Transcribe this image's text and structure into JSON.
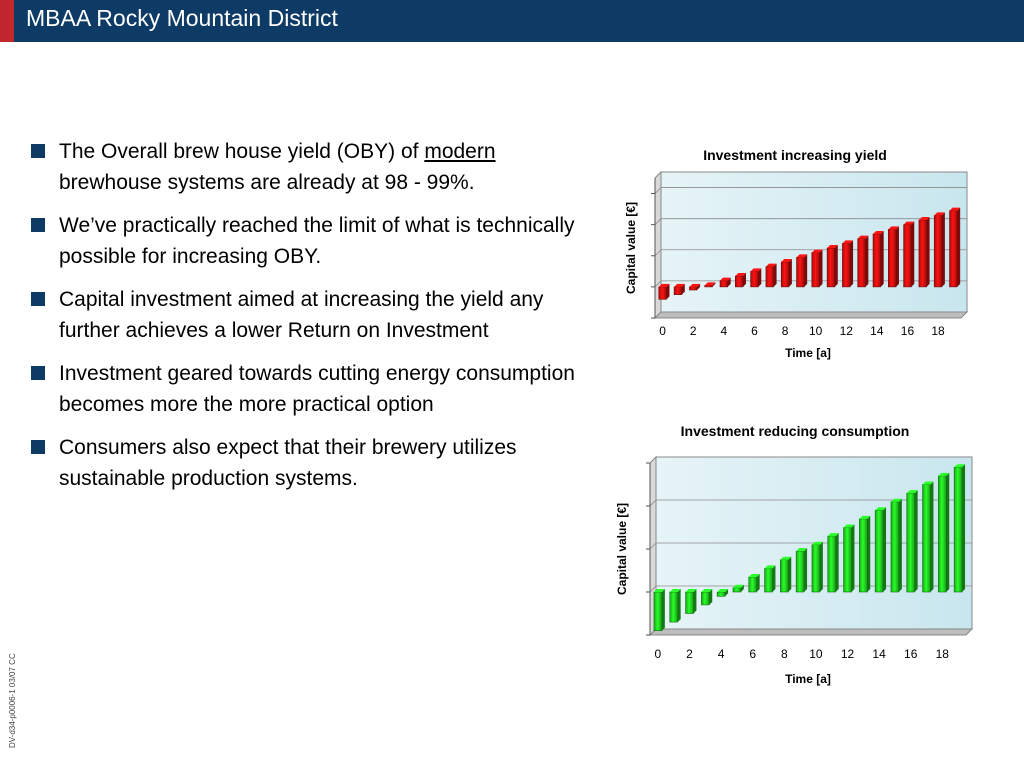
{
  "header": {
    "title": "MBAA Rocky Mountain District",
    "bg": "#0e3a66",
    "accent": "#c0282d"
  },
  "bullets": [
    {
      "pre": "The Overall brew house yield (OBY) of ",
      "underlined": "modern",
      "post": " brewhouse systems are already at 98 - 99%."
    },
    {
      "text": "We’ve practically reached the limit of what is technically possible for increasing OBY."
    },
    {
      "text": "Capital investment aimed at increasing the yield any further achieves a lower Return on Investment"
    },
    {
      "text": "Investment geared towards cutting energy consumption becomes more the more practical option"
    },
    {
      "text": "Consumers also expect that their brewery utilizes sustainable production systems."
    }
  ],
  "footer_code": "DV-d34-p0006-1 03/07 CC",
  "chart_data": [
    {
      "type": "bar",
      "title": "Investment increasing yield",
      "xlabel": "Time [a]",
      "ylabel": "Capital value [€]",
      "x": [
        0,
        1,
        2,
        3,
        4,
        5,
        6,
        7,
        8,
        9,
        10,
        11,
        12,
        13,
        14,
        15,
        16,
        17,
        18,
        19
      ],
      "xticks": [
        "0",
        "2",
        "4",
        "6",
        "8",
        "10",
        "12",
        "14",
        "16",
        "18"
      ],
      "values": [
        -0.4,
        -0.25,
        -0.1,
        0.05,
        0.2,
        0.35,
        0.5,
        0.65,
        0.8,
        0.95,
        1.1,
        1.25,
        1.4,
        1.55,
        1.7,
        1.85,
        2.0,
        2.15,
        2.3,
        2.45
      ],
      "ylim": [
        -1,
        3.5
      ],
      "grid": true,
      "bar_color": "#e41010"
    },
    {
      "type": "bar",
      "title": "Investment reducing consumption",
      "xlabel": "Time [a]",
      "ylabel": "Capital value [€]",
      "x": [
        0,
        1,
        2,
        3,
        4,
        5,
        6,
        7,
        8,
        9,
        10,
        11,
        12,
        13,
        14,
        15,
        16,
        17,
        18,
        19
      ],
      "xticks": [
        "0",
        "2",
        "4",
        "6",
        "8",
        "10",
        "12",
        "14",
        "16",
        "18"
      ],
      "values": [
        -0.9,
        -0.7,
        -0.5,
        -0.3,
        -0.1,
        0.1,
        0.35,
        0.55,
        0.75,
        0.95,
        1.1,
        1.3,
        1.5,
        1.7,
        1.9,
        2.1,
        2.3,
        2.5,
        2.7,
        2.9
      ],
      "ylim": [
        -1,
        3
      ],
      "grid": true,
      "bar_color": "#22dd22"
    }
  ]
}
